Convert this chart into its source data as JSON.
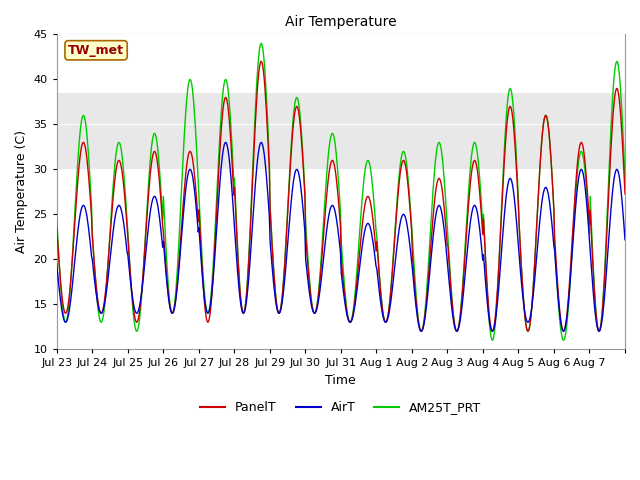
{
  "title": "Air Temperature",
  "xlabel": "Time",
  "ylabel": "Air Temperature (C)",
  "ylim": [
    10,
    45
  ],
  "yticks": [
    10,
    15,
    20,
    25,
    30,
    35,
    40,
    45
  ],
  "fig_bg": "#ffffff",
  "plot_bg": "#ffffff",
  "shaded_band": [
    30.0,
    38.5
  ],
  "shaded_color": "#e8e8e8",
  "annotation_label": "TW_met",
  "legend_items": [
    "PanelT",
    "AirT",
    "AM25T_PRT"
  ],
  "line_colors": [
    "#cc0000",
    "#0000cc",
    "#00cc00"
  ],
  "x_tick_labels": [
    "Jul 23",
    "Jul 24",
    "Jul 25",
    "Jul 26",
    "Jul 27",
    "Jul 28",
    "Jul 29",
    "Jul 30",
    "Jul 31",
    "Aug 1",
    "Aug 2",
    "Aug 3",
    "Aug 4",
    "Aug 5",
    "Aug 6",
    "Aug 7"
  ],
  "day_params": [
    [
      14,
      33,
      13,
      26,
      13,
      36
    ],
    [
      14,
      31,
      14,
      26,
      13,
      33
    ],
    [
      13,
      32,
      14,
      27,
      12,
      34
    ],
    [
      14,
      32,
      14,
      30,
      14,
      40
    ],
    [
      13,
      38,
      14,
      33,
      14,
      40
    ],
    [
      14,
      42,
      14,
      33,
      14,
      44
    ],
    [
      14,
      37,
      14,
      30,
      14,
      38
    ],
    [
      14,
      31,
      14,
      26,
      14,
      34
    ],
    [
      13,
      27,
      13,
      24,
      13,
      31
    ],
    [
      13,
      31,
      13,
      25,
      13,
      32
    ],
    [
      12,
      29,
      12,
      26,
      12,
      33
    ],
    [
      12,
      31,
      12,
      26,
      12,
      33
    ],
    [
      12,
      37,
      12,
      29,
      11,
      39
    ],
    [
      12,
      36,
      13,
      28,
      12,
      36
    ],
    [
      12,
      33,
      12,
      30,
      11,
      32
    ],
    [
      12,
      39,
      12,
      30,
      12,
      42
    ]
  ],
  "grid_color": "#d0d0d0",
  "spine_color": "#999999",
  "line_width": 1.0,
  "tick_label_size": 8,
  "title_size": 10,
  "axis_label_size": 9,
  "legend_size": 9
}
